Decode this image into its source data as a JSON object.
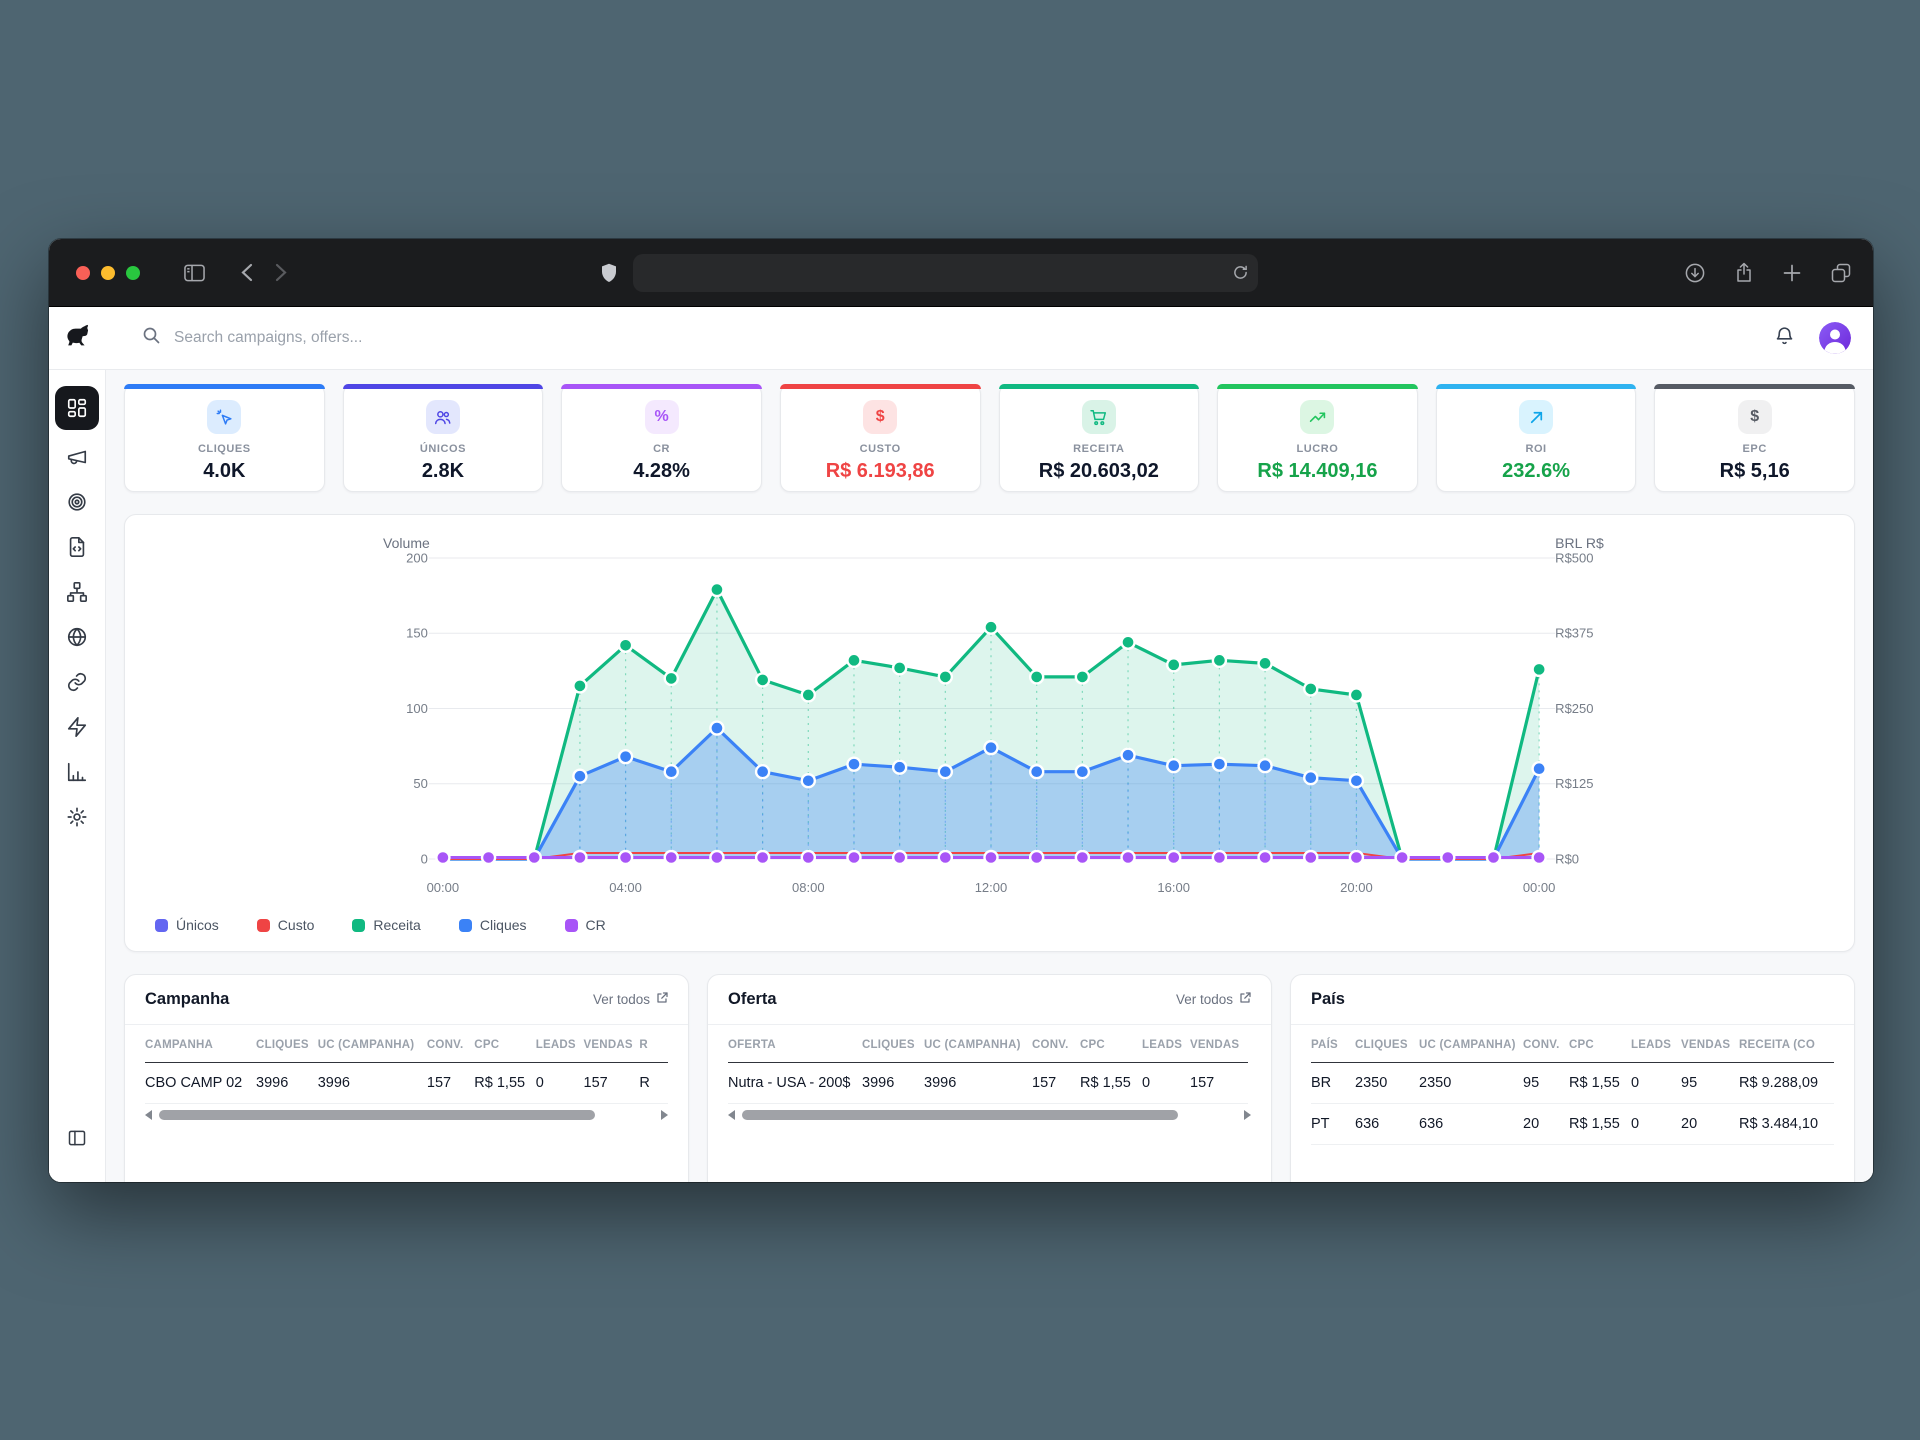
{
  "browser": {
    "traffic_lights": [
      "#f96057",
      "#fdbc2e",
      "#29c73f"
    ],
    "url_value": ""
  },
  "app": {
    "search_placeholder": "Search campaigns, offers...",
    "sidebar_items": [
      {
        "icon": "layout-dashboard",
        "active": true
      },
      {
        "icon": "megaphone",
        "active": false
      },
      {
        "icon": "target",
        "active": false
      },
      {
        "icon": "file-code",
        "active": false
      },
      {
        "icon": "network",
        "active": false
      },
      {
        "icon": "globe",
        "active": false
      },
      {
        "icon": "link",
        "active": false
      },
      {
        "icon": "zap",
        "active": false
      },
      {
        "icon": "bar-chart",
        "active": false
      },
      {
        "icon": "settings",
        "active": false
      }
    ],
    "sidebar_footer_icon": "panel-left"
  },
  "kpis": [
    {
      "label": "CLIQUES",
      "value": "4.0K",
      "accent": "#2e7cf6",
      "icon": "cursor-click",
      "icon_color": "#2e7cf6",
      "chip_bg": "#dcecfe",
      "value_color": "#0f172a"
    },
    {
      "label": "ÚNICOS",
      "value": "2.8K",
      "accent": "#4f46e5",
      "icon": "users",
      "icon_color": "#4f46e5",
      "chip_bg": "#e3e7fd",
      "value_color": "#0f172a"
    },
    {
      "label": "CR",
      "value": "4.28%",
      "accent": "#a855f7",
      "icon": "percent",
      "icon_color": "#a855f7",
      "chip_bg": "#f4e9fe",
      "value_color": "#0f172a"
    },
    {
      "label": "CUSTO",
      "value": "R$ 6.193,86",
      "accent": "#ef4444",
      "icon": "dollar",
      "icon_color": "#ef4444",
      "chip_bg": "#fde3e3",
      "value_color": "#ef4444"
    },
    {
      "label": "RECEITA",
      "value": "R$ 20.603,02",
      "accent": "#10b981",
      "icon": "cart",
      "icon_color": "#10b981",
      "chip_bg": "#d9f3e7",
      "value_color": "#0f172a"
    },
    {
      "label": "LUCRO",
      "value": "R$ 14.409,16",
      "accent": "#22c55e",
      "icon": "trend-up",
      "icon_color": "#22c55e",
      "chip_bg": "#dcf6e3",
      "value_color": "#16a34a"
    },
    {
      "label": "ROI",
      "value": "232.6%",
      "accent": "#2fb3f0",
      "icon": "arrow-up-right",
      "icon_color": "#0ea5e9",
      "chip_bg": "#d9f3fe",
      "value_color": "#16a34a"
    },
    {
      "label": "EPC",
      "value": "R$ 5,16",
      "accent": "#565b64",
      "icon": "dollar",
      "icon_color": "#565b64",
      "chip_bg": "#f0f0f1",
      "value_color": "#0f172a"
    }
  ],
  "chart_data": {
    "type": "area",
    "left_axis": {
      "title": "Volume",
      "ticks": [
        0,
        50,
        100,
        150,
        200
      ],
      "max": 200
    },
    "right_axis": {
      "title": "BRL R$",
      "ticks": [
        "R$0",
        "R$125",
        "R$250",
        "R$375",
        "R$500"
      ]
    },
    "x_ticks": [
      [
        0,
        "00:00"
      ],
      [
        4,
        "04:00"
      ],
      [
        8,
        "08:00"
      ],
      [
        12,
        "12:00"
      ],
      [
        16,
        "16:00"
      ],
      [
        20,
        "20:00"
      ],
      [
        24,
        "00:00"
      ]
    ],
    "grid": true,
    "legend_position": "bottom-left",
    "series": [
      {
        "name": "Únicos",
        "color": "#6366f1",
        "width": 2.4,
        "dots": "none",
        "values": [
          0,
          0,
          0,
          55,
          68,
          58,
          87,
          58,
          52,
          63,
          61,
          58,
          74,
          58,
          58,
          69,
          62,
          63,
          62,
          54,
          52,
          0,
          0,
          0,
          60
        ]
      },
      {
        "name": "Custo",
        "color": "#ef4444",
        "width": 2,
        "dots": "none",
        "values": [
          0,
          0,
          0,
          4,
          4,
          4,
          4,
          4,
          4,
          4,
          4,
          4,
          4,
          4,
          4,
          4,
          4,
          4,
          4,
          4,
          4,
          0,
          0,
          0,
          4
        ]
      },
      {
        "name": "Receita",
        "color": "#10b981",
        "width": 3.2,
        "dots": "nonzero",
        "fill": "rgba(16,185,129,0.14)",
        "stems": true,
        "values": [
          0,
          0,
          0,
          115,
          142,
          120,
          179,
          119,
          109,
          132,
          127,
          121,
          154,
          121,
          121,
          144,
          129,
          132,
          130,
          113,
          109,
          0,
          0,
          0,
          126
        ]
      },
      {
        "name": "Cliques",
        "color": "#3b82f6",
        "width": 3.2,
        "dots": "nonzero",
        "fill": "rgba(59,130,246,0.33)",
        "stems": true,
        "values": [
          0,
          0,
          0,
          55,
          68,
          58,
          87,
          58,
          52,
          63,
          61,
          58,
          74,
          58,
          58,
          69,
          62,
          63,
          62,
          54,
          52,
          0,
          0,
          0,
          60
        ]
      },
      {
        "name": "CR",
        "color": "#a855f7",
        "width": 3,
        "dots": "all",
        "values": [
          1,
          1,
          1,
          1,
          1,
          1,
          1,
          1,
          1,
          1,
          1,
          1,
          1,
          1,
          1,
          1,
          1,
          1,
          1,
          1,
          1,
          1,
          1,
          1,
          1
        ]
      }
    ],
    "draw_order": [
      "Receita",
      "Únicos",
      "Cliques",
      "Custo",
      "CR"
    ]
  },
  "tables": [
    {
      "title": "Campanha",
      "link": "Ver todos",
      "scrollbar": true,
      "columns": [
        "CAMPANHA",
        "CLIQUES",
        "UC (CAMPANHA)",
        "CONV.",
        "CPC",
        "LEADS",
        "VENDAS",
        "R"
      ],
      "rows": [
        [
          "CBO CAMP 02",
          "3996",
          "3996",
          "157",
          "R$ 1,55",
          "0",
          "157",
          "R"
        ]
      ]
    },
    {
      "title": "Oferta",
      "link": "Ver todos",
      "scrollbar": true,
      "columns": [
        "OFERTA",
        "CLIQUES",
        "UC (CAMPANHA)",
        "CONV.",
        "CPC",
        "LEADS",
        "VENDAS"
      ],
      "rows": [
        [
          "Nutra - USA - 200$",
          "3996",
          "3996",
          "157",
          "R$ 1,55",
          "0",
          "157"
        ]
      ]
    },
    {
      "title": "País",
      "link": null,
      "scrollbar": false,
      "columns": [
        "PAÍS",
        "CLIQUES",
        "UC (CAMPANHA)",
        "CONV.",
        "CPC",
        "LEADS",
        "VENDAS",
        "RECEITA (CO"
      ],
      "rows": [
        [
          "BR",
          "2350",
          "2350",
          "95",
          "R$ 1,55",
          "0",
          "95",
          "R$ 9.288,09"
        ],
        [
          "PT",
          "636",
          "636",
          "20",
          "R$ 1,55",
          "0",
          "20",
          "R$ 3.484,10"
        ]
      ]
    }
  ]
}
